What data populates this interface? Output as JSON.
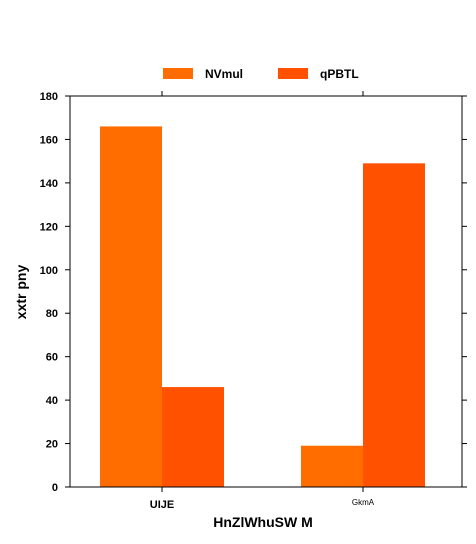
{
  "chart_data": {
    "type": "bar",
    "categories": [
      "UIJE",
      "GkmA"
    ],
    "series": [
      {
        "name": "NVmul",
        "values": [
          166,
          19
        ],
        "color": "#ff6d00"
      },
      {
        "name": "qPBTL",
        "values": [
          46,
          149
        ],
        "color": "#ff5100"
      }
    ],
    "title": "",
    "xlabel": "HnZlWhuSW   M",
    "ylabel": "xxtr pny",
    "ylim": [
      0,
      180
    ],
    "yticks": [
      0,
      20,
      40,
      60,
      80,
      100,
      120,
      140,
      160,
      180
    ],
    "grid": false,
    "legend_position": "top-center"
  }
}
